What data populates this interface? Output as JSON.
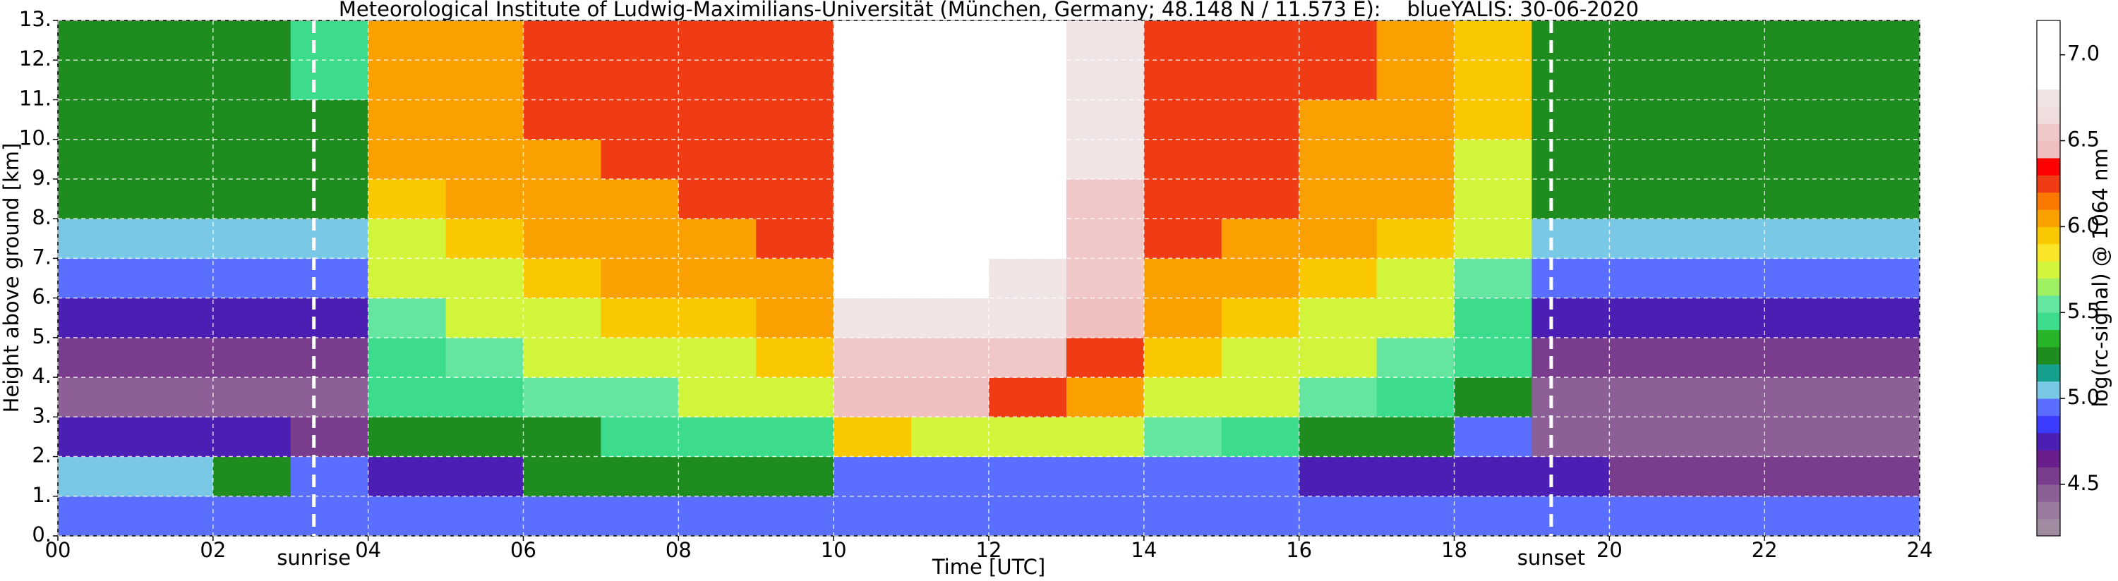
{
  "chart_data": {
    "type": "heatmap",
    "title": "Meteorological Institute of Ludwig-Maximilians-Universität (München, Germany; 48.148 N / 11.573 E):    blueYALIS: 30-06-2020",
    "x_label": "Time [UTC]",
    "y_label": "Height above ground [km]",
    "xlim": [
      0,
      24
    ],
    "ylim": [
      0,
      13
    ],
    "xticks": [
      {
        "value": 0,
        "label": "00"
      },
      {
        "value": 2,
        "label": "02"
      },
      {
        "value": 4,
        "label": "04"
      },
      {
        "value": 6,
        "label": "06"
      },
      {
        "value": 8,
        "label": "08"
      },
      {
        "value": 10,
        "label": "10"
      },
      {
        "value": 12,
        "label": "12"
      },
      {
        "value": 14,
        "label": "14"
      },
      {
        "value": 16,
        "label": "16"
      },
      {
        "value": 18,
        "label": "18"
      },
      {
        "value": 20,
        "label": "20"
      },
      {
        "value": 22,
        "label": "22"
      },
      {
        "value": 24,
        "label": "24"
      }
    ],
    "yticks": [
      {
        "value": 0,
        "label": "0."
      },
      {
        "value": 1,
        "label": "1."
      },
      {
        "value": 2,
        "label": "2."
      },
      {
        "value": 3,
        "label": "3."
      },
      {
        "value": 4,
        "label": "4."
      },
      {
        "value": 5,
        "label": "5."
      },
      {
        "value": 6,
        "label": "6."
      },
      {
        "value": 7,
        "label": "7."
      },
      {
        "value": 8,
        "label": "8."
      },
      {
        "value": 9,
        "label": "9."
      },
      {
        "value": 10,
        "label": "10."
      },
      {
        "value": 11,
        "label": "11."
      },
      {
        "value": 12,
        "label": "12."
      },
      {
        "value": 13,
        "label": "13."
      }
    ],
    "grid": true,
    "x": [
      0.5,
      1.5,
      2.5,
      3.5,
      4.5,
      5.5,
      6.5,
      7.5,
      8.5,
      9.5,
      10.5,
      11.5,
      12.5,
      13.5,
      14.5,
      15.5,
      16.5,
      17.5,
      18.5,
      19.5,
      20.5,
      21.5,
      22.5,
      23.5
    ],
    "y": [
      0.5,
      1.5,
      2.5,
      3.5,
      4.5,
      5.5,
      6.5,
      7.5,
      8.5,
      9.5,
      10.5,
      11.5,
      12.5
    ],
    "z": [
      [
        4.9,
        4.9,
        4.9,
        4.9,
        4.9,
        4.9,
        5.0,
        5.0,
        5.0,
        5.0,
        5.0,
        5.0,
        5.0,
        5.0,
        5.0,
        5.0,
        4.9,
        4.9,
        4.9,
        4.9,
        4.9,
        4.9,
        4.9,
        4.9
      ],
      [
        5.1,
        5.1,
        5.2,
        4.9,
        4.8,
        4.8,
        5.2,
        5.3,
        5.3,
        5.2,
        5.0,
        5.0,
        5.0,
        5.0,
        5.0,
        4.9,
        4.8,
        4.8,
        4.8,
        4.7,
        4.6,
        4.6,
        4.6,
        4.6
      ],
      [
        4.8,
        4.7,
        4.7,
        4.6,
        5.2,
        5.3,
        5.3,
        5.4,
        5.4,
        5.5,
        5.9,
        5.8,
        5.8,
        5.7,
        5.6,
        5.5,
        5.3,
        5.2,
        5.0,
        4.5,
        4.5,
        4.5,
        4.5,
        4.5
      ],
      [
        4.5,
        4.5,
        4.5,
        4.5,
        5.4,
        5.5,
        5.6,
        5.6,
        5.7,
        5.8,
        6.4,
        6.4,
        6.3,
        6.0,
        5.8,
        5.7,
        5.6,
        5.5,
        5.3,
        4.5,
        4.5,
        4.5,
        4.5,
        4.5
      ],
      [
        4.6,
        4.6,
        4.6,
        4.6,
        5.5,
        5.6,
        5.7,
        5.8,
        5.8,
        5.9,
        6.6,
        6.6,
        6.5,
        6.2,
        5.9,
        5.8,
        5.7,
        5.6,
        5.4,
        4.6,
        4.6,
        4.6,
        4.6,
        4.6
      ],
      [
        4.8,
        4.8,
        4.8,
        4.8,
        5.6,
        5.7,
        5.8,
        5.9,
        5.9,
        6.0,
        6.8,
        6.8,
        6.7,
        6.4,
        6.0,
        5.9,
        5.8,
        5.7,
        5.5,
        4.8,
        4.8,
        4.8,
        4.8,
        4.8
      ],
      [
        5.0,
        5.0,
        5.0,
        5.0,
        5.7,
        5.8,
        5.9,
        6.0,
        6.0,
        6.1,
        6.9,
        6.9,
        6.8,
        6.5,
        6.1,
        6.0,
        5.9,
        5.8,
        5.6,
        5.0,
        5.0,
        5.0,
        5.0,
        5.0
      ],
      [
        5.1,
        5.1,
        5.1,
        5.1,
        5.8,
        5.9,
        6.0,
        6.1,
        6.1,
        6.2,
        7.0,
        7.0,
        6.9,
        6.6,
        6.2,
        6.1,
        6.0,
        5.9,
        5.7,
        5.1,
        5.1,
        5.1,
        5.1,
        5.1
      ],
      [
        5.2,
        5.2,
        5.2,
        5.2,
        5.9,
        6.0,
        6.1,
        6.1,
        6.2,
        6.2,
        7.0,
        7.0,
        6.9,
        6.6,
        6.2,
        6.2,
        6.1,
        6.0,
        5.8,
        5.2,
        5.2,
        5.2,
        5.2,
        5.2
      ],
      [
        5.2,
        5.2,
        5.2,
        5.3,
        6.0,
        6.0,
        6.1,
        6.2,
        6.2,
        6.3,
        7.1,
        7.1,
        7.0,
        6.7,
        6.3,
        6.2,
        6.1,
        6.0,
        5.8,
        5.2,
        5.2,
        5.2,
        5.2,
        5.2
      ],
      [
        5.3,
        5.3,
        5.3,
        5.3,
        6.0,
        6.1,
        6.2,
        6.2,
        6.2,
        6.3,
        7.1,
        7.1,
        7.0,
        6.7,
        6.3,
        6.2,
        6.1,
        6.0,
        5.9,
        5.3,
        5.3,
        5.3,
        5.3,
        5.3
      ],
      [
        5.3,
        5.3,
        5.3,
        5.4,
        6.1,
        6.1,
        6.2,
        6.2,
        6.3,
        6.3,
        7.1,
        7.1,
        7.0,
        6.8,
        6.3,
        6.3,
        6.2,
        6.1,
        5.9,
        5.3,
        5.3,
        5.3,
        5.3,
        5.3
      ],
      [
        5.3,
        5.3,
        5.3,
        5.4,
        6.1,
        6.1,
        6.2,
        6.3,
        6.3,
        6.3,
        7.1,
        7.1,
        7.0,
        6.8,
        6.3,
        6.3,
        6.2,
        6.1,
        5.9,
        5.3,
        5.3,
        5.3,
        5.3,
        5.3
      ]
    ],
    "annotations": [
      {
        "text": "sunrise",
        "x": 3.3
      },
      {
        "text": "sunset",
        "x": 19.25
      }
    ],
    "colorbar": {
      "label": "log(rc-signal) @ 1064 nm",
      "lim": [
        4.2,
        7.2
      ],
      "ticks": [
        4.5,
        {
          "value": 5,
          "label": "5.0"
        },
        5.5,
        {
          "value": 6,
          "label": "6.0"
        },
        6.5,
        {
          "value": 7,
          "label": "7.0"
        }
      ],
      "colors": [
        "#a08ca0",
        "#9a7a9e",
        "#8c5f96",
        "#7a3c8c",
        "#6a1e8c",
        "#4b1eb4",
        "#3c3cff",
        "#5a6eff",
        "#78c8e6",
        "#14a08c",
        "#1e8c1e",
        "#28b428",
        "#3cdc8c",
        "#64e6a0",
        "#a0f064",
        "#d2f53c",
        "#fae628",
        "#fac800",
        "#faa000",
        "#fa7800",
        "#f03c14",
        "#ff0000",
        "#f0c0c0",
        "#f0c8c8",
        "#f0dede",
        "#f0e4e4",
        "#ffffff",
        "#ffffff",
        "#ffffff",
        "#ffffff"
      ]
    }
  }
}
